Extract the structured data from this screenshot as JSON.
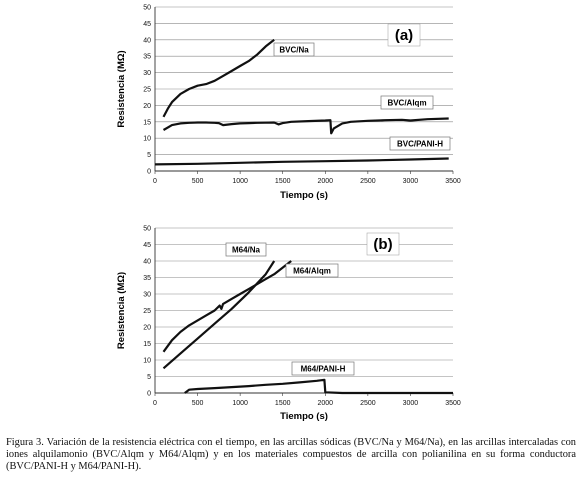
{
  "caption": "Figura 3. Variación de la resistencia eléctrica con el tiempo, en las arcillas sódicas (BVC/Na y M64/Na), en las arcillas intercaladas con iones alquilamonio (BVC/Alqm y M64/Alqm) y en los materiales compuestos de arcilla con polianilina en su forma conductora (BVC/PANI-H y M64/PANI-H).",
  "chart_data": [
    {
      "type": "line",
      "panel_label": "(a)",
      "xlabel": "Tiempo (s)",
      "ylabel": "Resistencia (MΩ)",
      "xlim": [
        0,
        3500
      ],
      "ylim": [
        0,
        50
      ],
      "xticks": [
        0,
        500,
        1000,
        1500,
        2000,
        2500,
        3000,
        3500
      ],
      "yticks": [
        0,
        5,
        10,
        15,
        20,
        25,
        30,
        35,
        40,
        45,
        50
      ],
      "grid": true,
      "series": [
        {
          "name": "BVC/Na",
          "x": [
            100,
            150,
            200,
            300,
            400,
            500,
            600,
            700,
            800,
            900,
            1000,
            1100,
            1200,
            1300,
            1400
          ],
          "y": [
            16.5,
            19,
            21,
            23.5,
            25,
            26,
            26.5,
            27.5,
            29,
            30.5,
            32,
            33.5,
            35.5,
            38,
            40
          ]
        },
        {
          "name": "BVC/Alqm",
          "x": [
            100,
            200,
            300,
            400,
            500,
            600,
            700,
            750,
            800,
            900,
            1000,
            1100,
            1200,
            1400,
            1450,
            1500,
            1600,
            1800,
            2000,
            2060,
            2070,
            2100,
            2200,
            2300,
            2500,
            2700,
            2900,
            3000,
            3200,
            3450
          ],
          "y": [
            12.5,
            14,
            14.5,
            14.7,
            14.8,
            14.8,
            14.7,
            14.6,
            14,
            14.3,
            14.5,
            14.6,
            14.7,
            14.8,
            14.2,
            14.6,
            15,
            15.2,
            15.4,
            15.5,
            11.5,
            13,
            14.5,
            15,
            15.3,
            15.5,
            15.6,
            15.4,
            15.8,
            16
          ]
        },
        {
          "name": "BVC/PANI-H",
          "x": [
            0,
            500,
            1000,
            1500,
            2000,
            2500,
            3000,
            3450
          ],
          "y": [
            2,
            2.2,
            2.5,
            2.8,
            3,
            3.2,
            3.5,
            3.8
          ]
        }
      ]
    },
    {
      "type": "line",
      "panel_label": "(b)",
      "xlabel": "Tiempo (s)",
      "ylabel": "Resistencia (MΩ)",
      "xlim": [
        0,
        3500
      ],
      "ylim": [
        0,
        50
      ],
      "xticks": [
        0,
        500,
        1000,
        1500,
        2000,
        2500,
        3000,
        3500
      ],
      "yticks": [
        0,
        5,
        10,
        15,
        20,
        25,
        30,
        35,
        40,
        45,
        50
      ],
      "grid": true,
      "series": [
        {
          "name": "M64/Na",
          "x": [
            100,
            300,
            500,
            700,
            900,
            1100,
            1300,
            1400
          ],
          "y": [
            7.5,
            12,
            16.5,
            21,
            25.5,
            30.5,
            36,
            40
          ]
        },
        {
          "name": "M64/Alqm",
          "x": [
            100,
            200,
            300,
            400,
            500,
            600,
            700,
            760,
            780,
            800,
            900,
            1000,
            1100,
            1200,
            1300,
            1400,
            1500,
            1600
          ],
          "y": [
            12.5,
            16,
            18.5,
            20.5,
            22,
            23.5,
            25,
            26.5,
            25.5,
            27,
            28.5,
            30,
            31.5,
            33,
            34.5,
            36,
            38,
            40
          ]
        },
        {
          "name": "M64/PANI-H",
          "x": [
            350,
            400,
            500,
            700,
            900,
            1100,
            1300,
            1500,
            1700,
            1900,
            1990,
            2000,
            2200,
            2600,
            3000,
            3500
          ],
          "y": [
            0,
            1,
            1.2,
            1.5,
            1.8,
            2.1,
            2.5,
            2.8,
            3.2,
            3.7,
            4,
            0.2,
            0,
            0,
            0,
            0
          ]
        }
      ]
    }
  ]
}
